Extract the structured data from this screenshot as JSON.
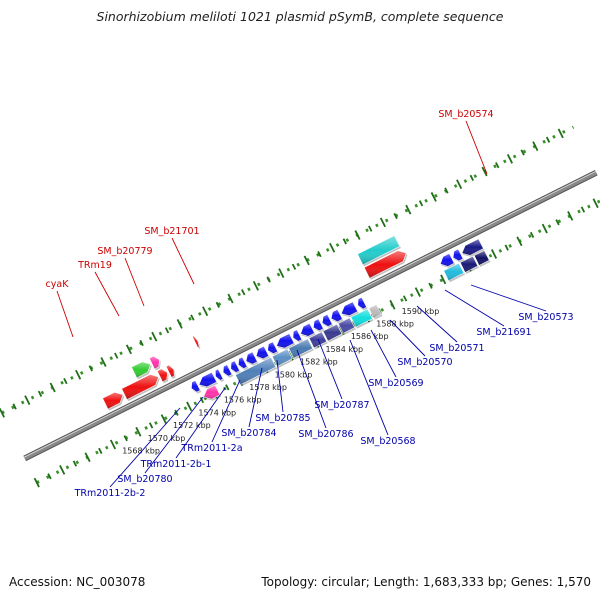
{
  "header": {
    "title": "Sinorhizobium meliloti 1021 plasmid pSymB, complete sequence"
  },
  "footer": {
    "accession": "Accession: NC_003078",
    "summary": "Topology: circular; Length: 1,683,333 bp; Genes: 1,570"
  },
  "colors": {
    "backbone": "#888888",
    "dots": "#3a8f2a",
    "label_forward": "#cc0000",
    "label_reverse": "#0000aa"
  },
  "scale": {
    "ticks": [
      {
        "kbp": 1568,
        "label": "1568 kbp"
      },
      {
        "kbp": 1570,
        "label": "1570 kbp"
      },
      {
        "kbp": 1572,
        "label": "1572 kbp"
      },
      {
        "kbp": 1574,
        "label": "1574 kbp"
      },
      {
        "kbp": 1576,
        "label": "1576 kbp"
      },
      {
        "kbp": 1578,
        "label": "1578 kbp"
      },
      {
        "kbp": 1580,
        "label": "1580 kbp"
      },
      {
        "kbp": 1582,
        "label": "1582 kbp"
      },
      {
        "kbp": 1584,
        "label": "1584 kbp"
      },
      {
        "kbp": 1586,
        "label": "1586 kbp"
      },
      {
        "kbp": 1588,
        "label": "1588 kbp"
      },
      {
        "kbp": 1590,
        "label": "1590 kbp"
      }
    ]
  },
  "features": [
    {
      "lane": "f2",
      "start": 1566.8,
      "end": 1568.2,
      "dir": 1,
      "color": "#ee1111"
    },
    {
      "lane": "f2",
      "start": 1568.3,
      "end": 1571.0,
      "dir": 1,
      "color": "#ee1111"
    },
    {
      "lane": "f3",
      "start": 1569.6,
      "end": 1570.9,
      "dir": 1,
      "color": "#33cc33"
    },
    {
      "lane": "f2",
      "start": 1571.1,
      "end": 1571.7,
      "dir": 1,
      "color": "#ee1111"
    },
    {
      "lane": "f3",
      "start": 1571.0,
      "end": 1571.6,
      "dir": 1,
      "color": "#ff33aa"
    },
    {
      "lane": "f2",
      "start": 1571.8,
      "end": 1572.2,
      "dir": 1,
      "color": "#ee1111"
    },
    {
      "lane": "f3",
      "start": 1574.4,
      "end": 1574.6,
      "dir": 1,
      "color": "#ee1111"
    },
    {
      "lane": "r1",
      "start": 1572.7,
      "end": 1573.2,
      "dir": -1,
      "color": "#1111ee"
    },
    {
      "lane": "r1",
      "start": 1573.3,
      "end": 1574.5,
      "dir": -1,
      "color": "#1111ee"
    },
    {
      "lane": "r1",
      "start": 1574.6,
      "end": 1575.0,
      "dir": -1,
      "color": "#1111ee"
    },
    {
      "lane": "r2",
      "start": 1573.2,
      "end": 1574.3,
      "dir": -1,
      "color": "#ff33aa"
    },
    {
      "lane": "r1",
      "start": 1575.2,
      "end": 1575.7,
      "dir": -1,
      "color": "#1111ee"
    },
    {
      "lane": "r1",
      "start": 1575.8,
      "end": 1576.3,
      "dir": -1,
      "color": "#1111ee"
    },
    {
      "lane": "r1",
      "start": 1576.4,
      "end": 1576.9,
      "dir": -1,
      "color": "#1111ee"
    },
    {
      "lane": "r1",
      "start": 1577.0,
      "end": 1577.7,
      "dir": -1,
      "color": "#1111ee"
    },
    {
      "lane": "r1",
      "start": 1577.8,
      "end": 1578.6,
      "dir": -1,
      "color": "#1111ee"
    },
    {
      "lane": "r1",
      "start": 1578.7,
      "end": 1579.3,
      "dir": -1,
      "color": "#1111ee"
    },
    {
      "lane": "r1",
      "start": 1579.4,
      "end": 1580.6,
      "dir": -1,
      "color": "#1111ee"
    },
    {
      "lane": "r1",
      "start": 1580.7,
      "end": 1581.2,
      "dir": -1,
      "color": "#1111ee"
    },
    {
      "lane": "r1",
      "start": 1581.3,
      "end": 1582.2,
      "dir": -1,
      "color": "#1111ee"
    },
    {
      "lane": "r1",
      "start": 1582.3,
      "end": 1582.9,
      "dir": -1,
      "color": "#1111ee"
    },
    {
      "lane": "r1",
      "start": 1583.0,
      "end": 1583.6,
      "dir": -1,
      "color": "#1111ee"
    },
    {
      "lane": "r1",
      "start": 1583.7,
      "end": 1584.4,
      "dir": -1,
      "color": "#1111ee"
    },
    {
      "lane": "r1",
      "start": 1584.5,
      "end": 1585.6,
      "dir": -1,
      "color": "#1111ee"
    },
    {
      "lane": "r1",
      "start": 1585.8,
      "end": 1586.3,
      "dir": -1,
      "color": "#1111ee"
    },
    {
      "lane": "r2",
      "start": 1575.9,
      "end": 1578.7,
      "dir": 0,
      "color": "#4f80b8"
    },
    {
      "lane": "r2",
      "start": 1578.8,
      "end": 1580.0,
      "dir": 0,
      "color": "#5a8fc4"
    },
    {
      "lane": "r2",
      "start": 1580.1,
      "end": 1581.6,
      "dir": 0,
      "color": "#4a7ab0"
    },
    {
      "lane": "r2",
      "start": 1581.7,
      "end": 1582.7,
      "dir": 0,
      "color": "#3d3d99"
    },
    {
      "lane": "r2",
      "start": 1582.8,
      "end": 1583.9,
      "dir": 0,
      "color": "#3a3a90"
    },
    {
      "lane": "r2",
      "start": 1584.0,
      "end": 1584.9,
      "dir": 0,
      "color": "#4a4aa6"
    },
    {
      "lane": "r2",
      "start": 1585.0,
      "end": 1586.3,
      "dir": 0,
      "color": "#11dddd"
    },
    {
      "lane": "r2",
      "start": 1586.4,
      "end": 1587.0,
      "dir": 0,
      "color": "#bbbbbb"
    },
    {
      "lane": "f2",
      "start": 1587.4,
      "end": 1590.5,
      "dir": 1,
      "color": "#ee1111"
    },
    {
      "lane": "f3",
      "start": 1587.4,
      "end": 1590.3,
      "dir": 0,
      "color": "#22cccc"
    },
    {
      "lane": "r1",
      "start": 1592.3,
      "end": 1593.2,
      "dir": -1,
      "color": "#1111ee"
    },
    {
      "lane": "r1",
      "start": 1593.3,
      "end": 1593.9,
      "dir": -1,
      "color": "#1111ee"
    },
    {
      "lane": "r1",
      "start": 1594.0,
      "end": 1595.5,
      "dir": -1,
      "color": "#1a1a88"
    },
    {
      "lane": "r2",
      "start": 1592.3,
      "end": 1593.5,
      "dir": 0,
      "color": "#22bbdd"
    },
    {
      "lane": "r2",
      "start": 1593.6,
      "end": 1594.6,
      "dir": 0,
      "color": "#1a1a77"
    },
    {
      "lane": "r2",
      "start": 1594.7,
      "end": 1595.5,
      "dir": 0,
      "color": "#111166"
    }
  ],
  "labels": [
    {
      "text": "cyaK",
      "side": "top",
      "anchor": [
        73,
        337
      ],
      "pos": [
        57,
        287
      ],
      "color": "#cc0000"
    },
    {
      "text": "TRm19",
      "side": "top",
      "anchor": [
        119,
        316
      ],
      "pos": [
        95,
        268
      ],
      "color": "#cc0000"
    },
    {
      "text": "SM_b20779",
      "side": "top",
      "anchor": [
        144,
        306
      ],
      "pos": [
        125,
        254
      ],
      "color": "#cc0000"
    },
    {
      "text": "SM_b21701",
      "side": "top",
      "anchor": [
        194,
        284
      ],
      "pos": [
        172,
        234
      ],
      "color": "#cc0000"
    },
    {
      "text": "SM_b20574",
      "side": "top",
      "anchor": [
        487,
        174
      ],
      "pos": [
        466,
        117
      ],
      "color": "#cc0000"
    },
    {
      "text": "TRm2011-2b-2",
      "side": "bottom",
      "anchor": [
        180,
        408
      ],
      "pos": [
        110,
        496
      ],
      "color": "#0000aa"
    },
    {
      "text": "SM_b20780",
      "side": "bottom",
      "anchor": [
        203,
        397
      ],
      "pos": [
        145,
        482
      ],
      "color": "#0000aa"
    },
    {
      "text": "TRm2011-2b-1",
      "side": "bottom",
      "anchor": [
        225,
        388
      ],
      "pos": [
        176,
        467
      ],
      "color": "#0000aa"
    },
    {
      "text": "TRm2011-2a",
      "side": "bottom",
      "anchor": [
        240,
        380
      ],
      "pos": [
        212,
        451
      ],
      "color": "#0000aa"
    },
    {
      "text": "SM_b20784",
      "side": "bottom",
      "anchor": [
        262,
        368
      ],
      "pos": [
        249,
        436
      ],
      "color": "#0000aa"
    },
    {
      "text": "SM_b20785",
      "side": "bottom",
      "anchor": [
        277,
        360
      ],
      "pos": [
        283,
        421
      ],
      "color": "#0000aa"
    },
    {
      "text": "SM_b20786",
      "side": "bottom",
      "anchor": [
        297,
        350
      ],
      "pos": [
        326,
        437
      ],
      "color": "#0000aa"
    },
    {
      "text": "SM_b20787",
      "side": "bottom",
      "anchor": [
        318,
        339
      ],
      "pos": [
        342,
        408
      ],
      "color": "#0000aa"
    },
    {
      "text": "SM_b20568",
      "side": "bottom",
      "anchor": [
        350,
        340
      ],
      "pos": [
        388,
        444
      ],
      "color": "#0000aa"
    },
    {
      "text": "SM_b20569",
      "side": "bottom",
      "anchor": [
        371,
        330
      ],
      "pos": [
        396,
        386
      ],
      "color": "#0000aa"
    },
    {
      "text": "SM_b20570",
      "side": "bottom",
      "anchor": [
        390,
        320
      ],
      "pos": [
        425,
        365
      ],
      "color": "#0000aa"
    },
    {
      "text": "SM_b20571",
      "side": "bottom",
      "anchor": [
        417,
        306
      ],
      "pos": [
        457,
        351
      ],
      "color": "#0000aa"
    },
    {
      "text": "SM_b21691",
      "side": "bottom",
      "anchor": [
        445,
        290
      ],
      "pos": [
        504,
        335
      ],
      "color": "#0000aa"
    },
    {
      "text": "SM_b20573",
      "side": "bottom",
      "anchor": [
        471,
        285
      ],
      "pos": [
        546,
        320
      ],
      "color": "#0000aa"
    }
  ]
}
